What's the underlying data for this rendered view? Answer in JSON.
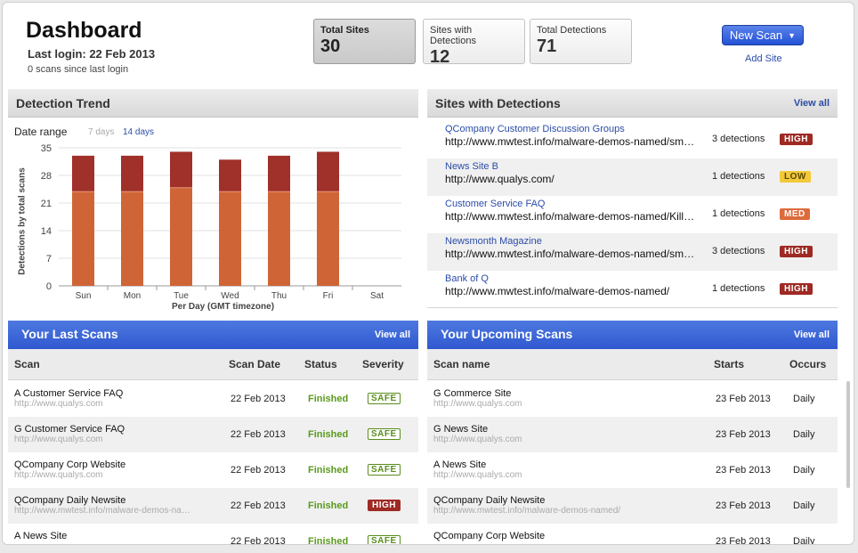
{
  "header": {
    "title": "Dashboard",
    "last_login": "Last login: 22 Feb 2013",
    "scans_since": "0 scans since last login",
    "new_scan_label": "New Scan",
    "add_site_label": "Add Site"
  },
  "stats": [
    {
      "label": "Total Sites",
      "value": "30",
      "active": true
    },
    {
      "label": "Sites with Detections",
      "value": "12",
      "active": false
    },
    {
      "label": "Total Detections",
      "value": "71",
      "active": false
    }
  ],
  "trend": {
    "title": "Detection Trend",
    "date_range_label": "Date range",
    "ranges": [
      "7 days",
      "14 days"
    ],
    "selected_range": "14 days"
  },
  "chart_data": {
    "type": "bar",
    "stacked": true,
    "categories": [
      "Sun",
      "Mon",
      "Tue",
      "Wed",
      "Thu",
      "Fri",
      "Sat"
    ],
    "series": [
      {
        "values": [
          24,
          24,
          25,
          24,
          24,
          24,
          0
        ],
        "color": "#cf6536"
      },
      {
        "values": [
          9,
          9,
          9,
          8,
          9,
          10,
          0
        ],
        "color": "#a0302a"
      }
    ],
    "yticks": [
      "0",
      "7",
      "14",
      "21",
      "28",
      "35"
    ],
    "ylim": [
      0,
      35
    ],
    "ylabel": "Detections by total scans",
    "xlabel": "Per Day (GMT timezone)",
    "grid": true
  },
  "sites_detections": {
    "title": "Sites with Detections",
    "view_all": "View all",
    "rows": [
      {
        "name": "QCompany Customer Discussion Groups",
        "url": "http://www.mwtest.info/malware-demos-named/sm…",
        "detections": "3 detections",
        "severity": "HIGH"
      },
      {
        "name": "News Site B",
        "url": "http://www.qualys.com/",
        "detections": "1 detections",
        "severity": "LOW"
      },
      {
        "name": "Customer Service FAQ",
        "url": "http://www.mwtest.info/malware-demos-named/Kill…",
        "detections": "1 detections",
        "severity": "MED"
      },
      {
        "name": "Newsmonth Magazine",
        "url": "http://www.mwtest.info/malware-demos-named/sm…",
        "detections": "3 detections",
        "severity": "HIGH"
      },
      {
        "name": "Bank of Q",
        "url": "http://www.mwtest.info/malware-demos-named/",
        "detections": "1 detections",
        "severity": "HIGH"
      }
    ]
  },
  "last_scans": {
    "title": "Your Last Scans",
    "view_all": "View all",
    "columns": [
      "Scan",
      "Scan Date",
      "Status",
      "Severity"
    ],
    "rows": [
      {
        "name": "A Customer Service FAQ",
        "url": "http://www.qualys.com",
        "date": "22 Feb 2013",
        "status": "Finished",
        "severity": "SAFE"
      },
      {
        "name": "G Customer Service FAQ",
        "url": "http://www.qualys.com",
        "date": "22 Feb 2013",
        "status": "Finished",
        "severity": "SAFE"
      },
      {
        "name": "QCompany Corp Website",
        "url": "http://www.qualys.com",
        "date": "22 Feb 2013",
        "status": "Finished",
        "severity": "SAFE"
      },
      {
        "name": "QCompany Daily Newsite",
        "url": "http://www.mwtest.info/malware-demos-na…",
        "date": "22 Feb 2013",
        "status": "Finished",
        "severity": "HIGH"
      },
      {
        "name": "A News Site",
        "url": "",
        "date": "22 Feb 2013",
        "status": "Finished",
        "severity": "SAFE"
      }
    ]
  },
  "upcoming_scans": {
    "title": "Your Upcoming Scans",
    "view_all": "View all",
    "columns": [
      "Scan name",
      "Starts",
      "Occurs"
    ],
    "rows": [
      {
        "name": "G Commerce Site",
        "url": "http://www.qualys.com",
        "starts": "23 Feb 2013",
        "occurs": "Daily"
      },
      {
        "name": "G News Site",
        "url": "http://www.qualys.com",
        "starts": "23 Feb 2013",
        "occurs": "Daily"
      },
      {
        "name": "A News Site",
        "url": "http://www.qualys.com",
        "starts": "23 Feb 2013",
        "occurs": "Daily"
      },
      {
        "name": "QCompany Daily Newsite",
        "url": "http://www.mwtest.info/malware-demos-named/",
        "starts": "23 Feb 2013",
        "occurs": "Daily"
      },
      {
        "name": "QCompany Corp Website",
        "url": "",
        "starts": "23 Feb 2013",
        "occurs": "Daily"
      }
    ]
  }
}
